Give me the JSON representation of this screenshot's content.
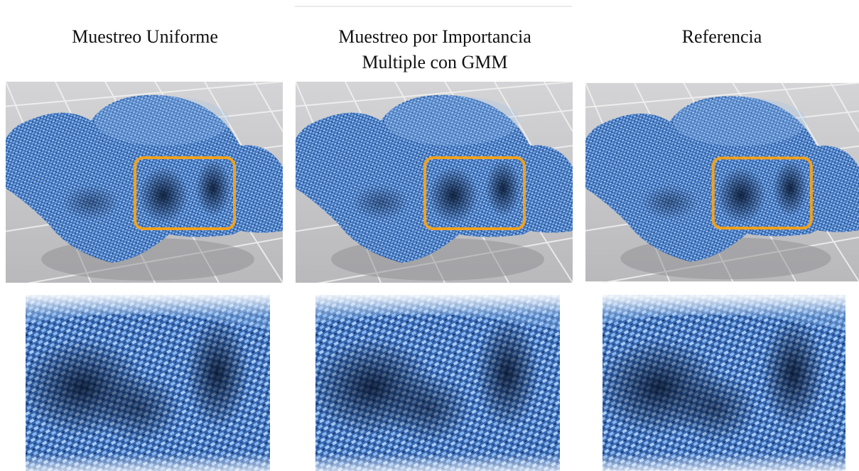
{
  "panels": [
    {
      "title": [
        "Muestreo Uniforme"
      ]
    },
    {
      "title": [
        "Muestreo por Importancia",
        "Multiple con GMM"
      ]
    },
    {
      "title": [
        "Referencia"
      ]
    }
  ]
}
